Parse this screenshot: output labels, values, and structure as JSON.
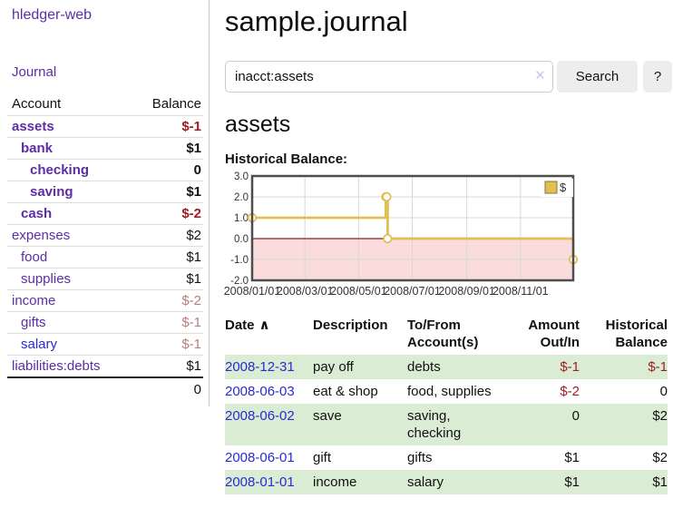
{
  "sidebar": {
    "brand": "hledger-web",
    "journal_link": "Journal",
    "accounts": {
      "headers": {
        "account": "Account",
        "balance": "Balance"
      },
      "rows": [
        {
          "name": "assets",
          "level": 1,
          "balance": "$-1",
          "bold": true,
          "balance_style": "neg-strong",
          "link_style": "link-purple"
        },
        {
          "name": "bank",
          "level": 2,
          "balance": "$1",
          "bold": true,
          "balance_style": "normal",
          "link_style": "link-purple"
        },
        {
          "name": "checking",
          "level": 3,
          "balance": "0",
          "bold": true,
          "balance_style": "normal",
          "link_style": "link-purple"
        },
        {
          "name": "saving",
          "level": 3,
          "balance": "$1",
          "bold": true,
          "balance_style": "normal",
          "link_style": "link-purple"
        },
        {
          "name": "cash",
          "level": 2,
          "balance": "$-2",
          "bold": true,
          "balance_style": "neg-strong",
          "link_style": "link-purple"
        },
        {
          "name": "expenses",
          "level": 1,
          "balance": "$2",
          "bold": false,
          "balance_style": "normal",
          "link_style": "link-purple"
        },
        {
          "name": "food",
          "level": 2,
          "balance": "$1",
          "bold": false,
          "balance_style": "normal",
          "link_style": "link-purple"
        },
        {
          "name": "supplies",
          "level": 2,
          "balance": "$1",
          "bold": false,
          "balance_style": "normal",
          "link_style": "link-purple"
        },
        {
          "name": "income",
          "level": 1,
          "balance": "$-2",
          "bold": false,
          "balance_style": "neg-soft",
          "link_style": "link-purple"
        },
        {
          "name": "gifts",
          "level": 2,
          "balance": "$-1",
          "bold": false,
          "balance_style": "neg-soft",
          "link_style": "link-purple"
        },
        {
          "name": "salary",
          "level": 2,
          "balance": "$-1",
          "bold": false,
          "balance_style": "neg-soft",
          "link_style": "link-blue"
        },
        {
          "name": "liabilities:debts",
          "level": 1,
          "balance": "$1",
          "bold": false,
          "balance_style": "normal",
          "link_style": "link-purple"
        }
      ],
      "total": "0"
    }
  },
  "main": {
    "title": "sample.journal",
    "search": {
      "value": "inacct:assets",
      "clear_icon": "×",
      "button": "Search",
      "help": "?"
    },
    "account_heading": "assets",
    "chart_label": "Historical Balance:"
  },
  "chart_data": {
    "type": "line",
    "subtype": "step-after",
    "title": "Historical Balance",
    "series": [
      {
        "name": "$",
        "color": "#e2bf52",
        "points": [
          {
            "date": "2008-01-01",
            "value": 1
          },
          {
            "date": "2008-06-01",
            "value": 2
          },
          {
            "date": "2008-06-02",
            "value": 2
          },
          {
            "date": "2008-06-03",
            "value": 0
          },
          {
            "date": "2008-12-31",
            "value": -1
          }
        ]
      }
    ],
    "x_range": [
      "2008-01-01",
      "2008-12-31"
    ],
    "x_ticks": [
      "2008/01/01",
      "2008/03/01",
      "2008/05/01",
      "2008/07/01",
      "2008/09/01",
      "2008/11/01"
    ],
    "y_ticks": [
      3.0,
      2.0,
      1.0,
      0.0,
      -1.0,
      -2.0
    ],
    "ylim": [
      -2.0,
      3.0
    ],
    "grid": true,
    "legend": {
      "position": "top-right",
      "label": "$"
    },
    "colors": {
      "negative_region": "#fadcdc",
      "zero_line": "#8e1f1f",
      "gridline": "#d8d8d8",
      "border": "#4d4d4d",
      "marker_fill": "#ffffff"
    }
  },
  "register": {
    "headers": {
      "date": "Date",
      "description": "Description",
      "accounts": "To/From Account(s)",
      "amount": "Amount Out/In",
      "balance": "Historical Balance"
    },
    "sort_icon": "∧",
    "rows": [
      {
        "date": "2008-12-31",
        "description": "pay off",
        "accounts": "debts",
        "amount": "$-1",
        "amount_negative": true,
        "balance": "$-1",
        "balance_negative": true
      },
      {
        "date": "2008-06-03",
        "description": "eat & shop",
        "accounts": "food, supplies",
        "amount": "$-2",
        "amount_negative": true,
        "balance": "0",
        "balance_negative": false
      },
      {
        "date": "2008-06-02",
        "description": "save",
        "accounts": "saving, checking",
        "amount": "0",
        "amount_negative": false,
        "balance": "$2",
        "balance_negative": false
      },
      {
        "date": "2008-06-01",
        "description": "gift",
        "accounts": "gifts",
        "amount": "$1",
        "amount_negative": false,
        "balance": "$2",
        "balance_negative": false
      },
      {
        "date": "2008-01-01",
        "description": "income",
        "accounts": "salary",
        "amount": "$1",
        "amount_negative": false,
        "balance": "$1",
        "balance_negative": false
      }
    ]
  },
  "colors": {
    "link_purple": "#5c2da5",
    "link_blue": "#2a2ad2",
    "negative_strong": "#9e1e24",
    "negative_soft": "#b87e7e",
    "row_stripe_green": "#dbecd5",
    "chart_gold": "#e2bf52"
  }
}
